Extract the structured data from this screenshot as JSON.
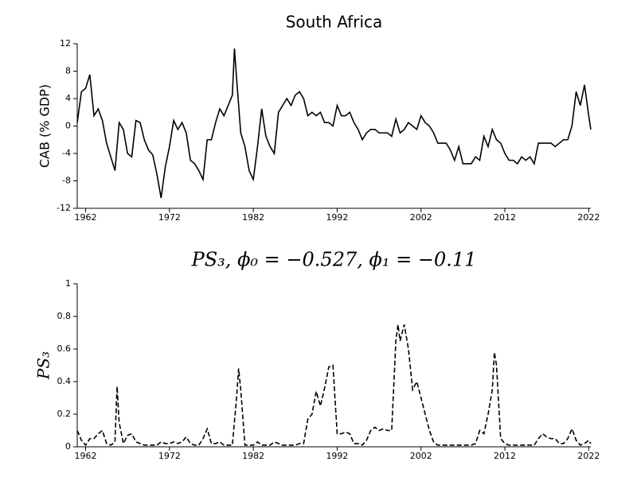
{
  "chart_data": [
    {
      "type": "line",
      "title": "South Africa",
      "ylabel": "CAB (% GDP)",
      "xlim": [
        1961,
        2022.25
      ],
      "xticks": [
        1962,
        1972,
        1982,
        1992,
        2002,
        2012,
        2022
      ],
      "ylim": [
        -12,
        12
      ],
      "yticks": [
        -12,
        -8,
        -4,
        0,
        4,
        8,
        12
      ],
      "series": [
        {
          "color": "#000000",
          "linestyle": "solid",
          "x": [
            1961,
            1961.5,
            1962,
            1962.5,
            1963,
            1963.5,
            1964,
            1964.5,
            1965,
            1965.5,
            1966,
            1966.5,
            1967,
            1967.5,
            1968,
            1968.5,
            1969,
            1969.5,
            1970,
            1970.5,
            1971,
            1971.5,
            1972,
            1972.5,
            1973,
            1973.5,
            1974,
            1974.5,
            1975,
            1975.5,
            1976,
            1976.5,
            1977,
            1977.5,
            1978,
            1978.5,
            1979,
            1979.5,
            1979.75,
            1980,
            1980.5,
            1981,
            1981.5,
            1982,
            1982.5,
            1983,
            1983.5,
            1984,
            1984.5,
            1985,
            1985.5,
            1986,
            1986.5,
            1987,
            1987.5,
            1988,
            1988.5,
            1989,
            1989.5,
            1990,
            1990.5,
            1991,
            1991.5,
            1992,
            1992.5,
            1993,
            1993.5,
            1994,
            1994.5,
            1995,
            1995.5,
            1996,
            1996.5,
            1997,
            1997.5,
            1998,
            1998.5,
            1999,
            1999.5,
            2000,
            2000.5,
            2001,
            2001.5,
            2002,
            2002.5,
            2003,
            2003.5,
            2004,
            2004.5,
            2005,
            2005.5,
            2006,
            2006.5,
            2007,
            2007.5,
            2008,
            2008.5,
            2009,
            2009.5,
            2010,
            2010.5,
            2011,
            2011.5,
            2012,
            2012.5,
            2013,
            2013.5,
            2014,
            2014.5,
            2015,
            2015.5,
            2016,
            2016.5,
            2017,
            2017.5,
            2018,
            2018.5,
            2019,
            2019.5,
            2020,
            2020.5,
            2021,
            2021.5,
            2022,
            2022.25
          ],
          "values": [
            0.5,
            5,
            5.5,
            7.5,
            1.5,
            2.5,
            0.8,
            -2.5,
            -4.5,
            -6.5,
            0.5,
            -0.5,
            -4,
            -4.5,
            0.8,
            0.5,
            -2,
            -3.5,
            -4.2,
            -7,
            -10.5,
            -6,
            -3,
            0.8,
            -0.5,
            0.5,
            -1,
            -5,
            -5.5,
            -6.5,
            -7.8,
            -2,
            -2,
            0.5,
            2.5,
            1.5,
            3,
            4.5,
            11.3,
            7,
            -1,
            -3,
            -6.5,
            -7.8,
            -3,
            2.5,
            -1.5,
            -3,
            -4,
            2,
            3,
            4,
            3,
            4.5,
            5,
            4,
            1.5,
            2,
            1.5,
            2,
            0.5,
            0.5,
            0,
            3,
            1.5,
            1.5,
            2,
            0.5,
            -0.5,
            -2,
            -1,
            -0.5,
            -0.5,
            -1,
            -1,
            -1,
            -1.5,
            1,
            -1,
            -0.5,
            0.5,
            0,
            -0.5,
            1.5,
            0.5,
            0,
            -1,
            -2.5,
            -2.5,
            -2.5,
            -3.5,
            -5,
            -3,
            -5.5,
            -5.5,
            -5.5,
            -4.5,
            -5,
            -1.5,
            -3,
            -0.5,
            -2,
            -2.5,
            -4,
            -5,
            -5,
            -5.5,
            -4.5,
            -5,
            -4.5,
            -5.5,
            -2.5,
            -2.5,
            -2.5,
            -2.5,
            -3,
            -2.5,
            -2,
            -2,
            0,
            5,
            3,
            6,
            1.5,
            -0.5
          ]
        }
      ]
    },
    {
      "type": "line",
      "title": "PS₃, ϕ₀ = −0.527, ϕ₁ = −0.11",
      "ylabel": "PS₃",
      "xlim": [
        1961,
        2022.25
      ],
      "xticks": [
        1962,
        1972,
        1982,
        1992,
        2002,
        2012,
        2022
      ],
      "ylim": [
        0,
        1
      ],
      "yticks": [
        0,
        0.2,
        0.4,
        0.6,
        0.8,
        1
      ],
      "series": [
        {
          "color": "#000000",
          "linestyle": "dashed",
          "x": [
            1961,
            1961.5,
            1962,
            1962.5,
            1963,
            1963.5,
            1964,
            1964.5,
            1965,
            1965.5,
            1965.75,
            1966,
            1966.5,
            1967,
            1967.5,
            1968,
            1968.5,
            1969,
            1969.5,
            1970,
            1970.5,
            1971,
            1971.5,
            1972,
            1972.5,
            1973,
            1973.5,
            1974,
            1974.5,
            1975,
            1975.5,
            1976,
            1976.5,
            1977,
            1977.5,
            1978,
            1978.5,
            1979,
            1979.5,
            1980,
            1980.25,
            1980.5,
            1981,
            1981.5,
            1982,
            1982.5,
            1983,
            1983.5,
            1984,
            1984.5,
            1985,
            1985.5,
            1986,
            1986.5,
            1987,
            1987.5,
            1988,
            1988.5,
            1989,
            1989.5,
            1990,
            1990.5,
            1991,
            1991.5,
            1992,
            1992.5,
            1993,
            1993.5,
            1994,
            1994.5,
            1995,
            1995.5,
            1996,
            1996.5,
            1997,
            1997.5,
            1998,
            1998.5,
            1999,
            1999.25,
            1999.5,
            2000,
            2000.5,
            2001,
            2001.5,
            2002,
            2002.5,
            2003,
            2003.5,
            2004,
            2004.5,
            2005,
            2005.5,
            2006,
            2006.5,
            2007,
            2007.5,
            2008,
            2008.5,
            2009,
            2009.5,
            2010,
            2010.5,
            2010.75,
            2011,
            2011.5,
            2012,
            2012.5,
            2013,
            2013.5,
            2014,
            2014.5,
            2015,
            2015.5,
            2016,
            2016.5,
            2017,
            2017.5,
            2018,
            2018.5,
            2019,
            2019.5,
            2020,
            2020.5,
            2021,
            2021.5,
            2022,
            2022.25
          ],
          "values": [
            0.1,
            0.04,
            0.01,
            0.05,
            0.05,
            0.08,
            0.1,
            0.02,
            0.01,
            0.03,
            0.37,
            0.15,
            0.02,
            0.07,
            0.08,
            0.03,
            0.02,
            0.01,
            0.01,
            0.01,
            0.01,
            0.03,
            0.02,
            0.02,
            0.03,
            0.02,
            0.03,
            0.06,
            0.02,
            0.01,
            0.01,
            0.05,
            0.11,
            0.02,
            0.02,
            0.03,
            0.01,
            0.01,
            0.01,
            0.3,
            0.48,
            0.35,
            0.01,
            0.01,
            0.01,
            0.03,
            0.01,
            0.01,
            0.01,
            0.03,
            0.02,
            0.01,
            0.01,
            0.01,
            0.01,
            0.02,
            0.02,
            0.17,
            0.2,
            0.34,
            0.25,
            0.36,
            0.49,
            0.5,
            0.08,
            0.08,
            0.09,
            0.08,
            0.02,
            0.02,
            0.01,
            0.04,
            0.1,
            0.12,
            0.1,
            0.11,
            0.1,
            0.1,
            0.65,
            0.75,
            0.65,
            0.75,
            0.6,
            0.35,
            0.4,
            0.3,
            0.2,
            0.1,
            0.03,
            0.01,
            0.01,
            0.01,
            0.01,
            0.01,
            0.01,
            0.01,
            0.01,
            0.01,
            0.02,
            0.1,
            0.08,
            0.2,
            0.35,
            0.58,
            0.5,
            0.05,
            0.02,
            0.01,
            0.01,
            0.01,
            0.01,
            0.01,
            0.01,
            0.01,
            0.05,
            0.08,
            0.06,
            0.05,
            0.05,
            0.02,
            0.02,
            0.05,
            0.11,
            0.04,
            0.01,
            0.02,
            0.04,
            0.02
          ]
        }
      ]
    }
  ]
}
